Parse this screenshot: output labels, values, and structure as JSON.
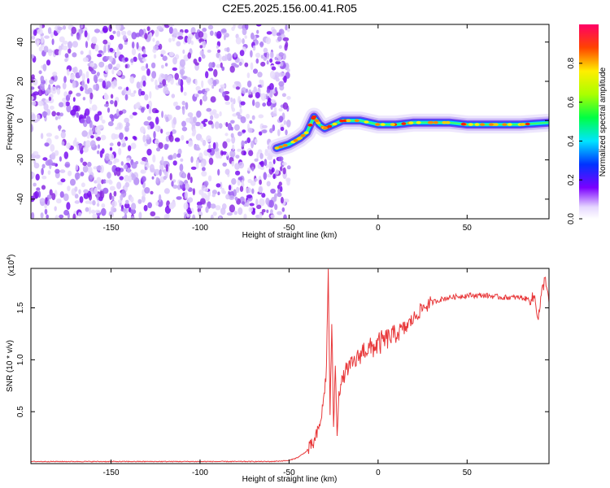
{
  "title": "C2E5.2025.156.00.41.R05",
  "chart_data": [
    {
      "type": "heatmap",
      "xlabel": "Height of straight line (km)",
      "ylabel": "Frequency (Hz)",
      "xlim": [
        -195,
        96
      ],
      "ylim": [
        -50,
        49
      ],
      "xticks": [
        -150,
        -100,
        -50,
        0,
        50
      ],
      "yticks": [
        -40,
        -20,
        0,
        20,
        40
      ],
      "colorbar": {
        "label": "Normalized spectral amplitude",
        "range": [
          0,
          1
        ],
        "ticks": [
          "0.0",
          "0.2",
          "0.4",
          "0.6",
          "0.8"
        ],
        "tick_values": [
          0,
          0.2,
          0.4,
          0.6,
          0.8
        ]
      },
      "noise_region": {
        "x": [
          -195,
          -50
        ],
        "level": 0.2
      },
      "ridge": [
        {
          "x": -57,
          "y": -14
        },
        {
          "x": -50,
          "y": -12
        },
        {
          "x": -44,
          "y": -9
        },
        {
          "x": -40,
          "y": -6
        },
        {
          "x": -36,
          "y": 2
        },
        {
          "x": -33,
          "y": -2
        },
        {
          "x": -30,
          "y": -4
        },
        {
          "x": -25,
          "y": -2
        },
        {
          "x": -20,
          "y": 0
        },
        {
          "x": -10,
          "y": 0
        },
        {
          "x": 0,
          "y": -2
        },
        {
          "x": 10,
          "y": -2
        },
        {
          "x": 20,
          "y": -1
        },
        {
          "x": 30,
          "y": -1
        },
        {
          "x": 40,
          "y": -1
        },
        {
          "x": 50,
          "y": -2
        },
        {
          "x": 60,
          "y": -2
        },
        {
          "x": 70,
          "y": -2
        },
        {
          "x": 80,
          "y": -2
        },
        {
          "x": 96,
          "y": -1
        }
      ]
    },
    {
      "type": "line",
      "xlabel": "Height of straight line (km)",
      "ylabel": "SNR (10 * v/v)",
      "y_multiplier_label": "(x10",
      "y_multiplier_exp": "4",
      "y_multiplier_suffix": ")",
      "xlim": [
        -195,
        96
      ],
      "ylim": [
        0,
        1.88
      ],
      "xticks": [
        -150,
        -100,
        -50,
        0,
        50
      ],
      "yticks": [
        0.5,
        1.0,
        1.5
      ],
      "ytick_labels": [
        "0.5",
        "1.0",
        "1.5"
      ],
      "color": "#e8393b",
      "series": [
        {
          "x": [
            -195,
            -100,
            -60,
            -50,
            -45,
            -40,
            -36,
            -33,
            -31,
            -29,
            -28,
            -27,
            -26,
            -25,
            -24,
            -23,
            -22,
            -20,
            -18,
            -15,
            -12,
            -10,
            -8,
            -5,
            0,
            5,
            10,
            15,
            20,
            25,
            30,
            35,
            40,
            50,
            60,
            70,
            80,
            85,
            88,
            90,
            92,
            94,
            96
          ],
          "y": [
            0.02,
            0.02,
            0.02,
            0.03,
            0.06,
            0.12,
            0.2,
            0.35,
            0.55,
            0.9,
            1.88,
            0.5,
            1.3,
            0.4,
            0.9,
            0.3,
            0.7,
            0.8,
            0.9,
            0.95,
            1.0,
            1.05,
            1.1,
            1.1,
            1.15,
            1.2,
            1.25,
            1.3,
            1.4,
            1.5,
            1.55,
            1.58,
            1.6,
            1.62,
            1.62,
            1.6,
            1.6,
            1.58,
            1.6,
            1.4,
            1.65,
            1.8,
            1.55
          ]
        }
      ]
    }
  ]
}
